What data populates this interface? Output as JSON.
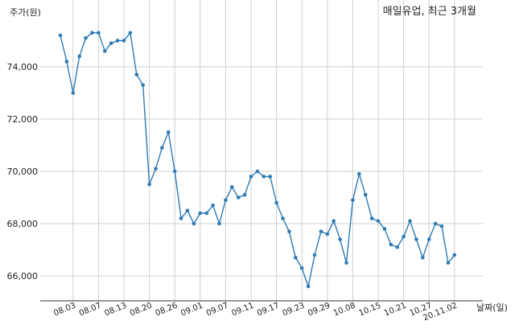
{
  "chart_data": {
    "type": "line",
    "title": "매일유업, 최근 3개월",
    "ylabel": "주가(원)",
    "xlabel": "날짜(일)",
    "ylim": [
      65000,
      75800
    ],
    "grid": true,
    "y_ticks": [
      {
        "value": 66000,
        "label": "66,000"
      },
      {
        "value": 68000,
        "label": "68,000"
      },
      {
        "value": 70000,
        "label": "70,000"
      },
      {
        "value": 72000,
        "label": "72,000"
      },
      {
        "value": 74000,
        "label": "74,000"
      }
    ],
    "x_ticks": [
      {
        "index": 2,
        "label": "08.03"
      },
      {
        "index": 6,
        "label": "08.07"
      },
      {
        "index": 10,
        "label": "08.13"
      },
      {
        "index": 14,
        "label": "08.20"
      },
      {
        "index": 18,
        "label": "08.26"
      },
      {
        "index": 22,
        "label": "09.01"
      },
      {
        "index": 26,
        "label": "09.07"
      },
      {
        "index": 30,
        "label": "09.11"
      },
      {
        "index": 34,
        "label": "09.17"
      },
      {
        "index": 38,
        "label": "09.23"
      },
      {
        "index": 42,
        "label": "09.29"
      },
      {
        "index": 46,
        "label": "10.08"
      },
      {
        "index": 50,
        "label": "10.15"
      },
      {
        "index": 54,
        "label": "10.21"
      },
      {
        "index": 58,
        "label": "10.27"
      },
      {
        "index": 62,
        "label": "20.11.02"
      }
    ],
    "x_count": 63,
    "series": [
      {
        "color": "#2e7bb4",
        "values": [
          75200,
          74200,
          73000,
          74400,
          75100,
          75300,
          75300,
          74600,
          74900,
          75000,
          75000,
          75300,
          73700,
          73300,
          69500,
          70100,
          70900,
          71500,
          70000,
          68200,
          68500,
          68000,
          68400,
          68400,
          68700,
          68000,
          68900,
          69400,
          69000,
          69100,
          69800,
          70000,
          69800,
          69800,
          68800,
          68200,
          67700,
          66700,
          66300,
          65600,
          66800,
          67700,
          67600,
          68100,
          67400,
          66500,
          68900,
          69900,
          69100,
          68200,
          68100,
          67800,
          67200,
          67100,
          67500,
          68100,
          67400,
          66700,
          67400,
          68000,
          67900,
          66500,
          66800
        ]
      }
    ]
  }
}
